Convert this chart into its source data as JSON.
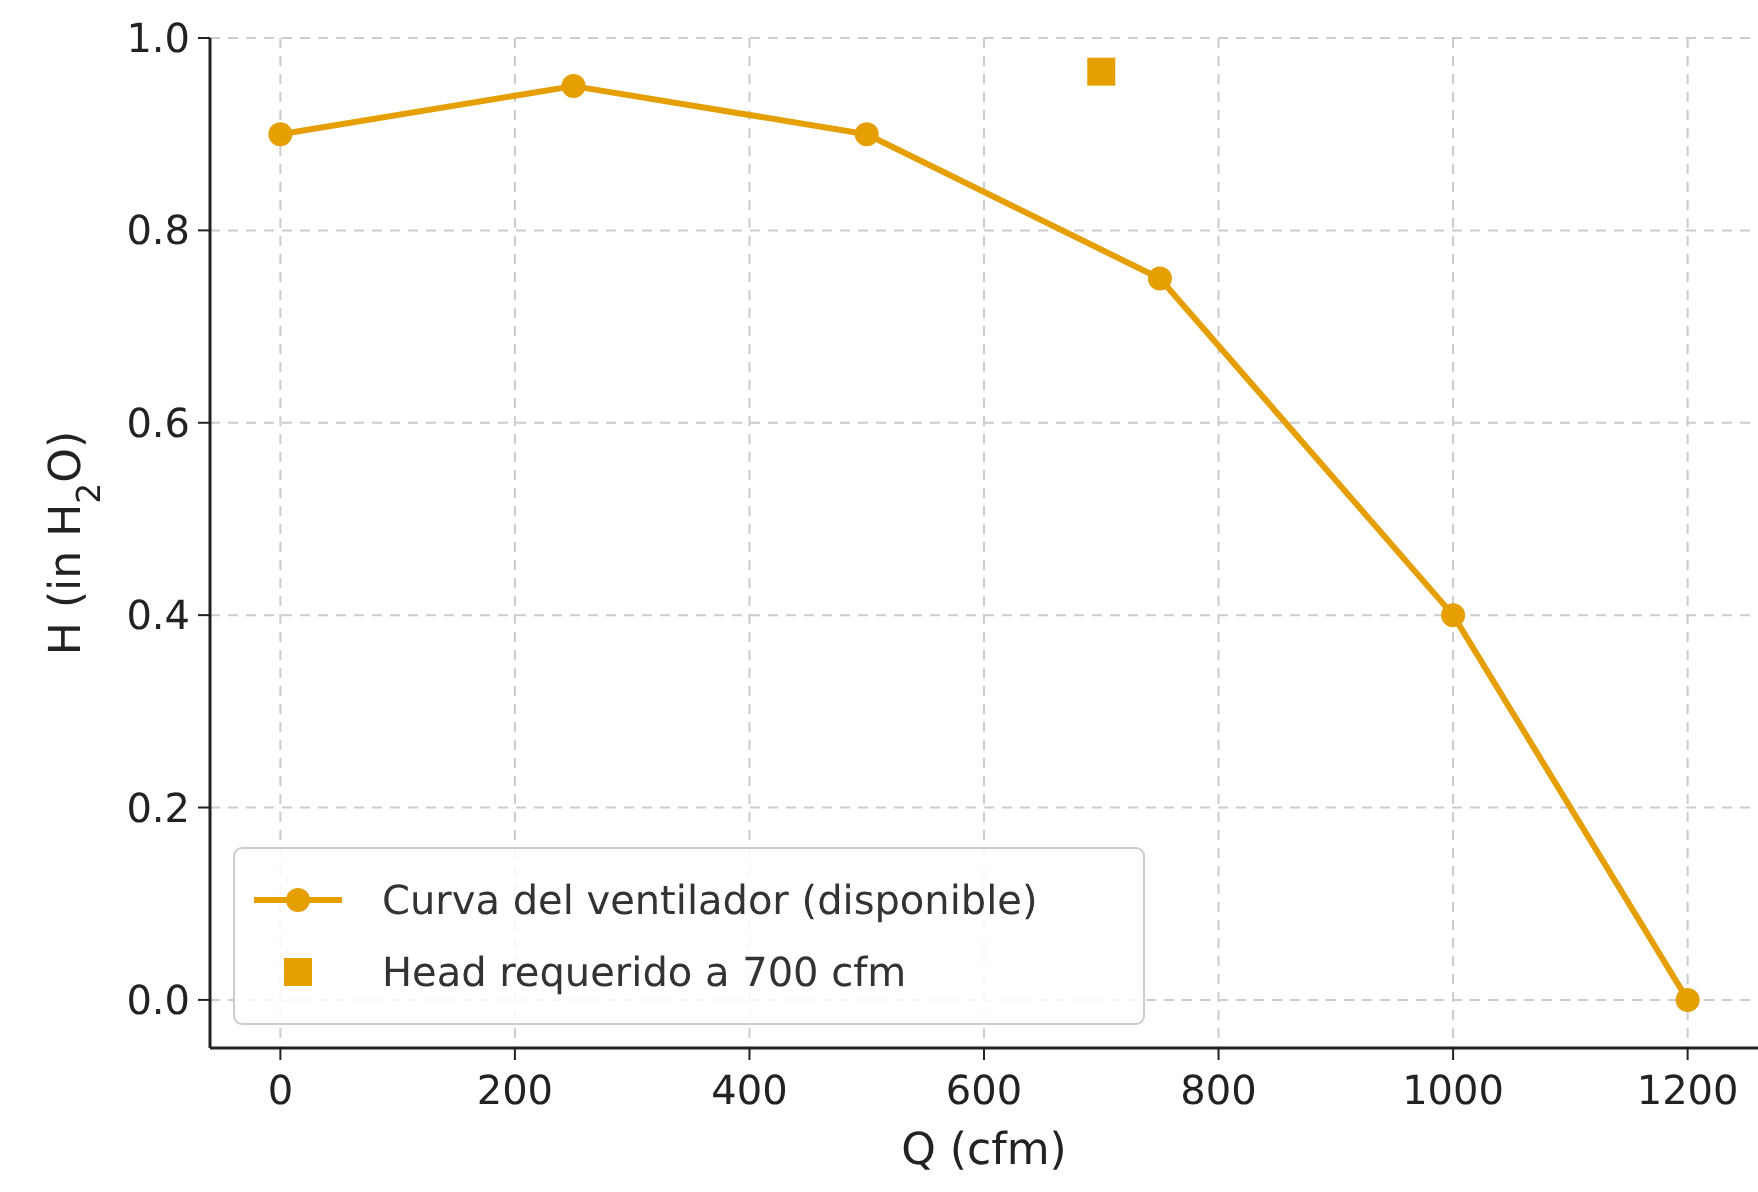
{
  "chart_data": {
    "type": "line",
    "xlabel": "Q (cfm)",
    "ylabel": "H (in H$_{2}$O)",
    "xlim": [
      -60,
      1260
    ],
    "ylim": [
      -0.05,
      1.0
    ],
    "xticks": [
      0,
      200,
      400,
      600,
      800,
      1000,
      1200
    ],
    "yticks": [
      {
        "value": 0,
        "label": "0.0"
      },
      {
        "value": 0.2,
        "label": "0.2"
      },
      {
        "value": 0.4,
        "label": "0.4"
      },
      {
        "value": 0.6,
        "label": "0.6"
      },
      {
        "value": 0.8,
        "label": "0.8"
      },
      {
        "value": 1.0,
        "label": "1.0"
      }
    ],
    "grid": true,
    "legend": "bottom left",
    "series": [
      {
        "name": "Curva del ventilador (disponible)",
        "color": "#e69f00",
        "marker": "circle",
        "line_style": "solid",
        "x": [
          0,
          250,
          500,
          750,
          1000,
          1200
        ],
        "values": [
          0.9,
          0.95,
          0.9,
          0.75,
          0.4,
          0.0
        ]
      },
      {
        "name": "Head requerido a 700 cfm",
        "type": "scatter",
        "color": "#e69f00",
        "marker": "square",
        "x": [
          700
        ],
        "values": [
          0.965
        ]
      }
    ]
  }
}
